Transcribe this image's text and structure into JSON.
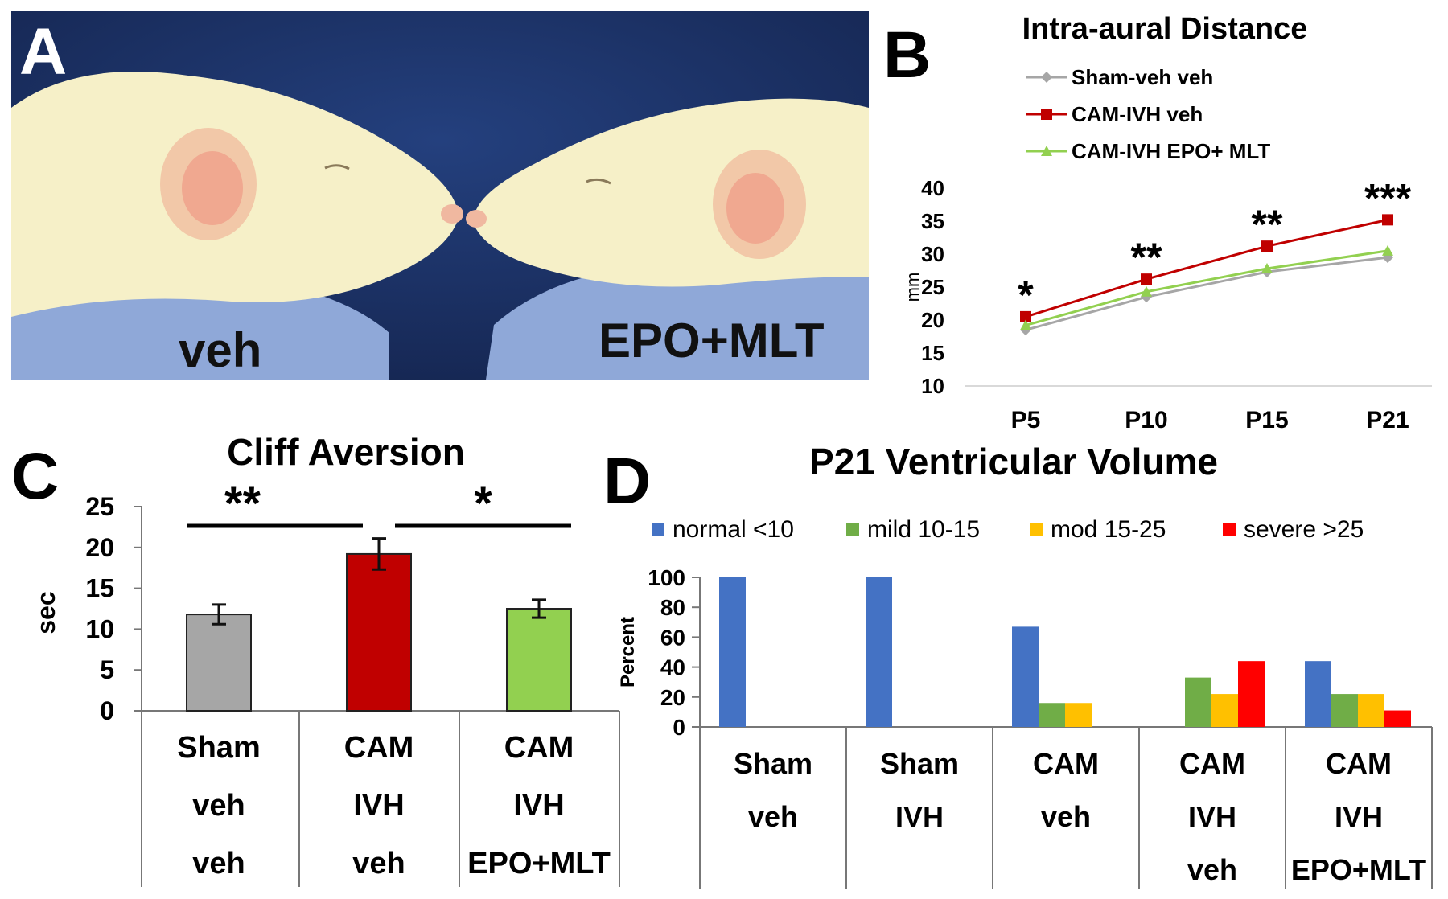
{
  "panels": {
    "a": "A",
    "b": "B",
    "c": "C",
    "d": "D"
  },
  "photo": {
    "labels": {
      "left": "veh",
      "right": "EPO+MLT"
    },
    "colors": {
      "background": "#1b2f66",
      "fur": "#f6f0c8",
      "ear": "#f0a890",
      "cloth": "#8fa8d8"
    }
  },
  "chart_data": [
    {
      "id": "B",
      "type": "line",
      "title": "Intra-aural Distance",
      "ylabel": "mm",
      "xlabel": "",
      "categories": [
        "P5",
        "P10",
        "P15",
        "P21"
      ],
      "ylim": [
        10,
        40
      ],
      "yticks": [
        "40",
        "35",
        "30",
        "25",
        "20",
        "15",
        "10"
      ],
      "legend_position": "top-left",
      "series": [
        {
          "name": "Sham-veh veh",
          "values": [
            18.5,
            23.5,
            27.3,
            29.5
          ],
          "color": "#a6a6a6",
          "marker": "diamond"
        },
        {
          "name": "CAM-IVH veh",
          "values": [
            20.5,
            26.2,
            31.2,
            35.2
          ],
          "color": "#c00000",
          "marker": "square"
        },
        {
          "name": "CAM-IVH EPO+ MLT",
          "values": [
            19.2,
            24.3,
            27.8,
            30.5
          ],
          "color": "#92d050",
          "marker": "triangle"
        }
      ],
      "significance": [
        "*",
        "**",
        "**",
        "***"
      ]
    },
    {
      "id": "C",
      "type": "bar",
      "title": "Cliff Aversion",
      "ylabel": "sec",
      "ylim": [
        0,
        25
      ],
      "yticks": [
        "25",
        "20",
        "15",
        "10",
        "5",
        "0"
      ],
      "categories": [
        [
          "Sham",
          "veh",
          "veh"
        ],
        [
          "CAM",
          "IVH",
          "veh"
        ],
        [
          "CAM",
          "IVH",
          "EPO+MLT"
        ]
      ],
      "values": [
        11.8,
        19.2,
        12.5
      ],
      "errors": [
        1.2,
        1.9,
        1.1
      ],
      "colors": [
        "#a6a6a6",
        "#c00000",
        "#92d050"
      ],
      "significance": [
        {
          "label": "**",
          "from": 0,
          "to": 1
        },
        {
          "label": "*",
          "from": 1,
          "to": 2
        }
      ]
    },
    {
      "id": "D",
      "type": "bar",
      "title": "P21 Ventricular Volume",
      "ylabel": "Percent",
      "ylim": [
        0,
        100
      ],
      "yticks": [
        "100",
        "80",
        "60",
        "40",
        "20",
        "0"
      ],
      "legend_position": "top",
      "categories": [
        [
          "Sham",
          "veh"
        ],
        [
          "Sham",
          "IVH"
        ],
        [
          "CAM",
          "veh"
        ],
        [
          "CAM",
          "IVH",
          "veh"
        ],
        [
          "CAM",
          "IVH",
          "EPO+MLT"
        ]
      ],
      "series": [
        {
          "name": "normal <10",
          "color": "#4472c4",
          "values": [
            100,
            100,
            67,
            0,
            44
          ]
        },
        {
          "name": "mild 10-15",
          "color": "#70ad47",
          "values": [
            0,
            0,
            16,
            33,
            22
          ]
        },
        {
          "name": "mod 15-25",
          "color": "#ffc000",
          "values": [
            0,
            0,
            16,
            22,
            22
          ]
        },
        {
          "name": "severe >25",
          "color": "#ff0000",
          "values": [
            0,
            0,
            0,
            44,
            11
          ]
        }
      ]
    }
  ]
}
